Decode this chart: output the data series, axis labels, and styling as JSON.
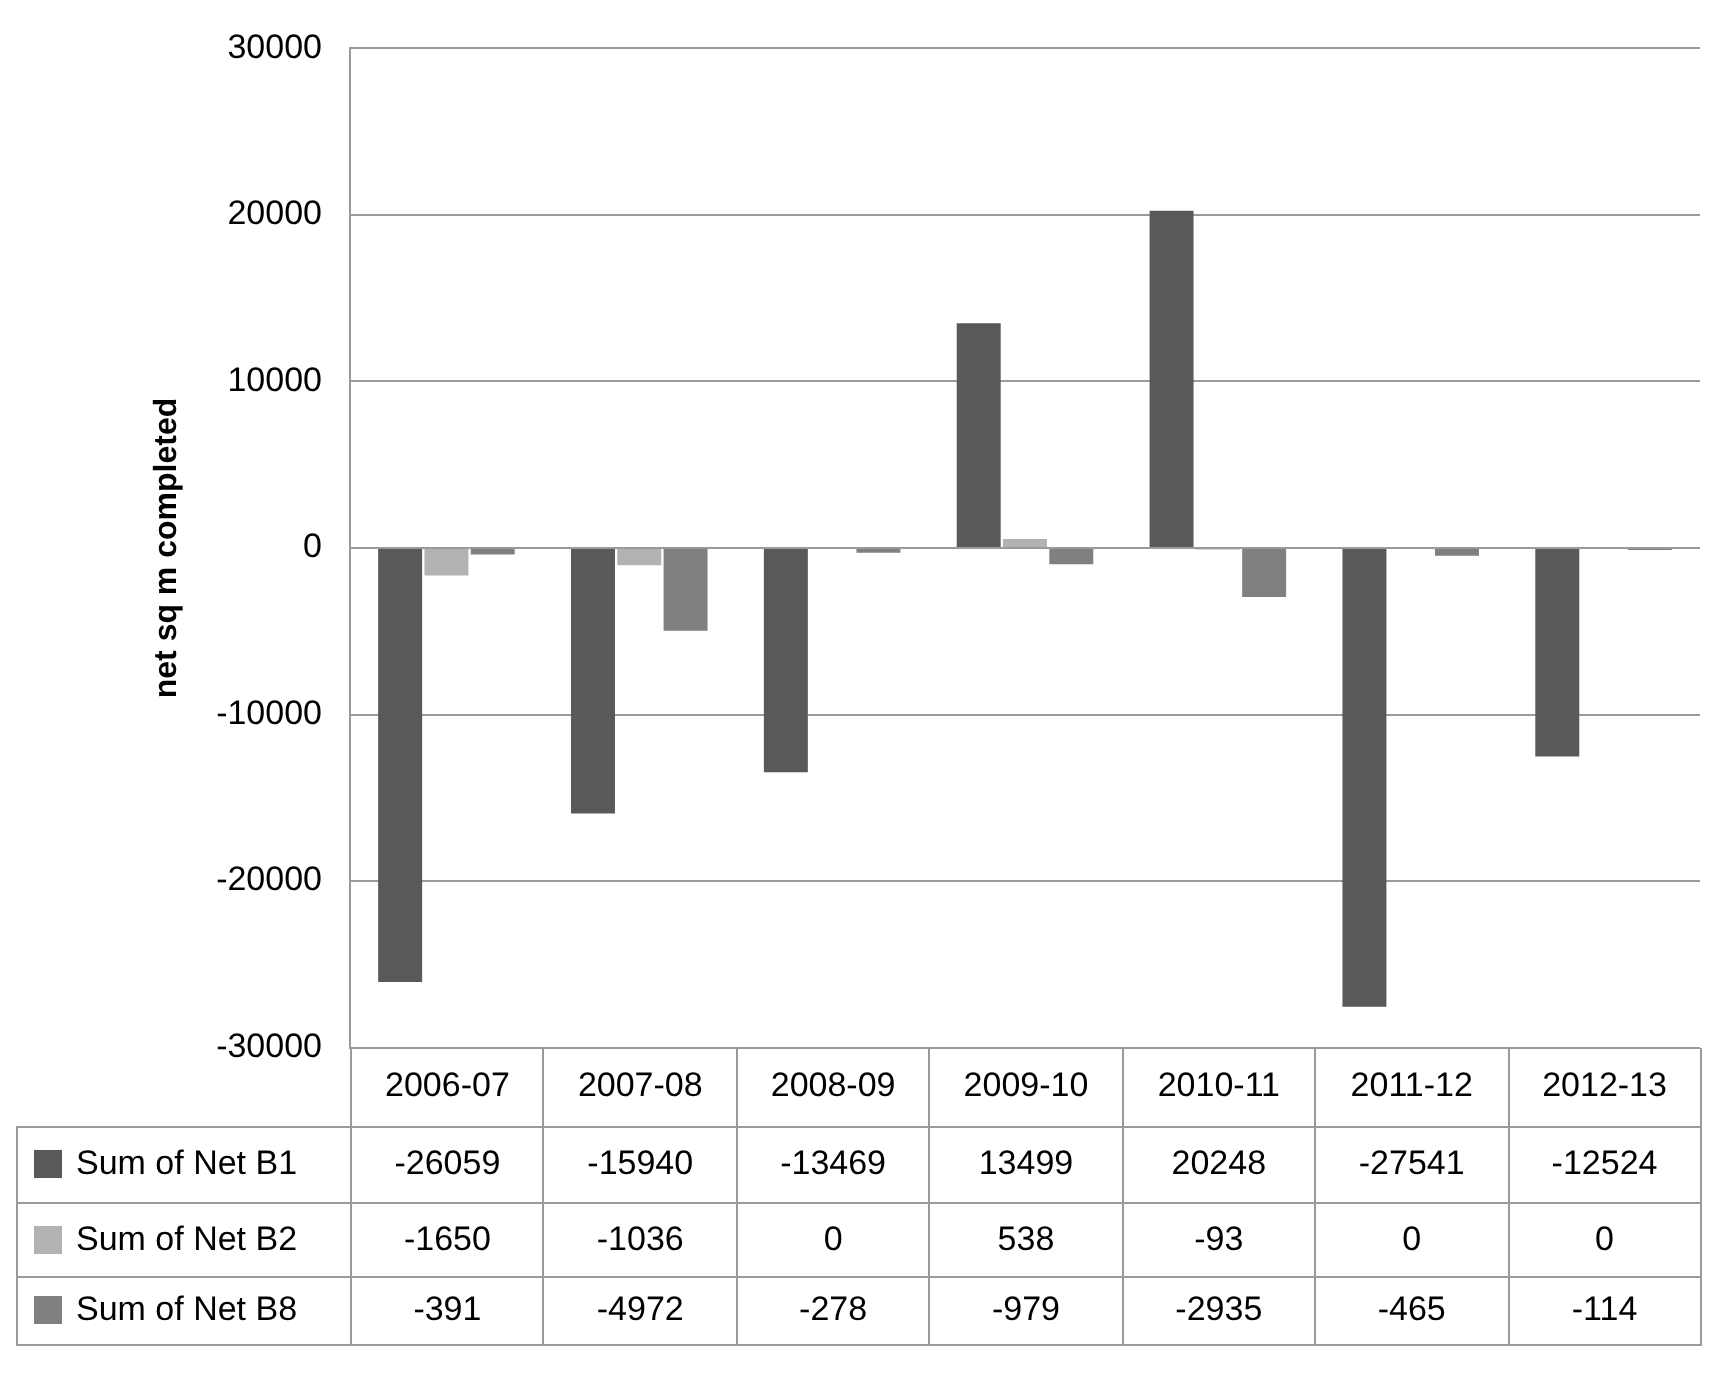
{
  "chart_data": {
    "type": "bar",
    "ylabel": "net sq m completed",
    "categories": [
      "2006-07",
      "2007-08",
      "2008-09",
      "2009-10",
      "2010-11",
      "2011-12",
      "2012-13"
    ],
    "series": [
      {
        "name": "Sum of Net B1",
        "color": "#595959",
        "values": [
          -26059,
          -15940,
          -13469,
          13499,
          20248,
          -27541,
          -12524
        ]
      },
      {
        "name": "Sum of Net B2",
        "color": "#b2b2b2",
        "values": [
          -1650,
          -1036,
          0,
          538,
          -93,
          0,
          0
        ]
      },
      {
        "name": "Sum of Net B8",
        "color": "#808080",
        "values": [
          -391,
          -4972,
          -278,
          -979,
          -2935,
          -465,
          -114
        ]
      }
    ],
    "ylim": [
      -30000,
      30000
    ],
    "yticks": [
      -30000,
      -20000,
      -10000,
      0,
      10000,
      20000,
      30000
    ],
    "grid": "y",
    "legend": "bottom",
    "data_labels": true
  }
}
